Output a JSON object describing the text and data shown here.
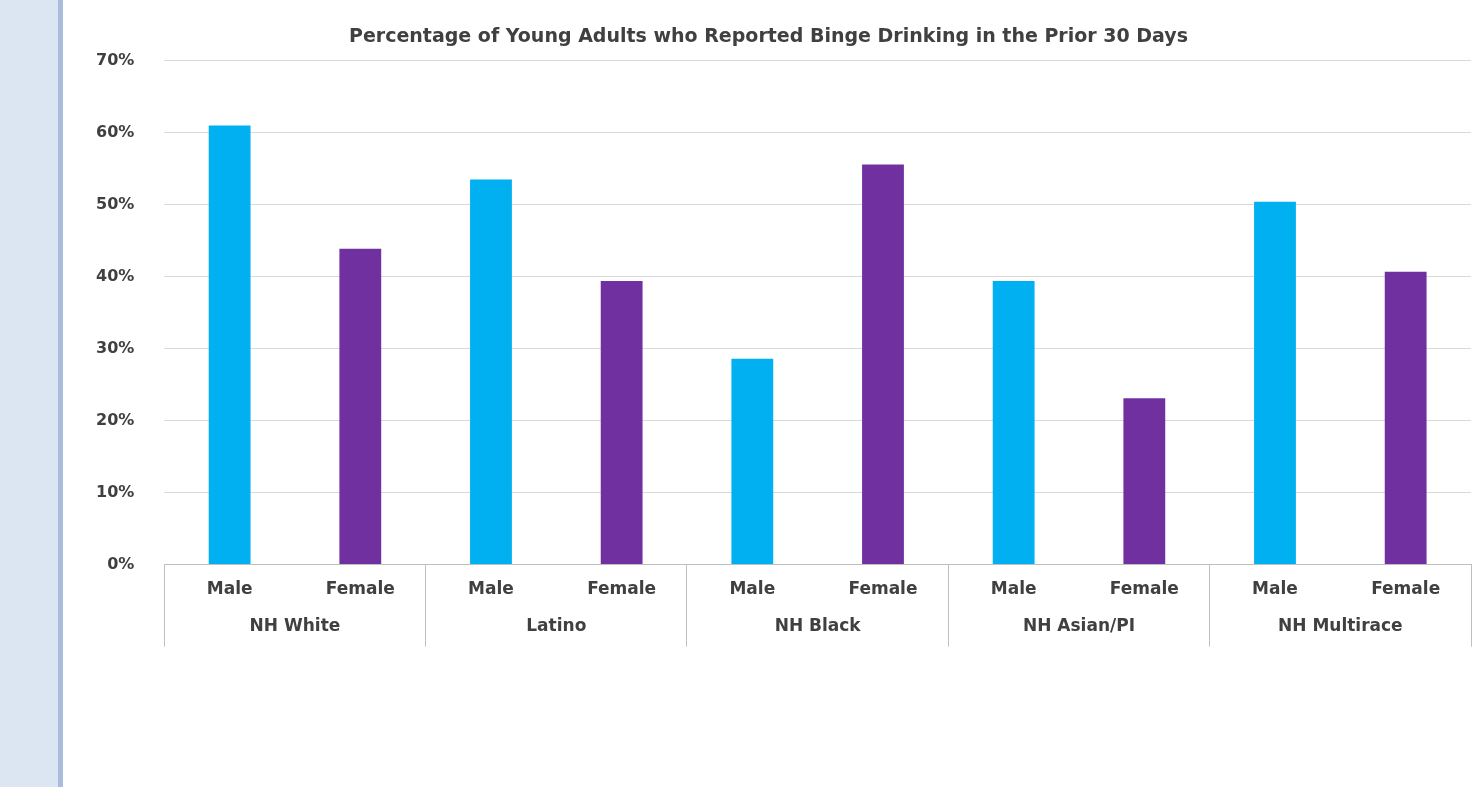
{
  "chart_data": {
    "type": "bar",
    "title": "Percentage of Young Adults who Reported Binge Drinking in the Prior 30 Days",
    "categories": [
      "NH White",
      "Latino",
      "NH Black",
      "NH Asian/PI",
      "NH Multirace"
    ],
    "series": [
      {
        "name": "Male",
        "color": "#00b0f0",
        "values": [
          61.0,
          53.5,
          28.6,
          39.4,
          50.4
        ]
      },
      {
        "name": "Female",
        "color": "#7030a0",
        "values": [
          43.9,
          39.4,
          55.6,
          23.1,
          40.7
        ]
      }
    ],
    "ylim": [
      0,
      70
    ],
    "yticks": [
      {
        "value": 0,
        "label": "0%"
      },
      {
        "value": 10,
        "label": "10%"
      },
      {
        "value": 20,
        "label": "20%"
      },
      {
        "value": 30,
        "label": "30%"
      },
      {
        "value": 40,
        "label": "40%"
      },
      {
        "value": 50,
        "label": "50%"
      },
      {
        "value": 60,
        "label": "60%"
      },
      {
        "value": 70,
        "label": "70%"
      }
    ],
    "grid": "y",
    "legend": false
  }
}
